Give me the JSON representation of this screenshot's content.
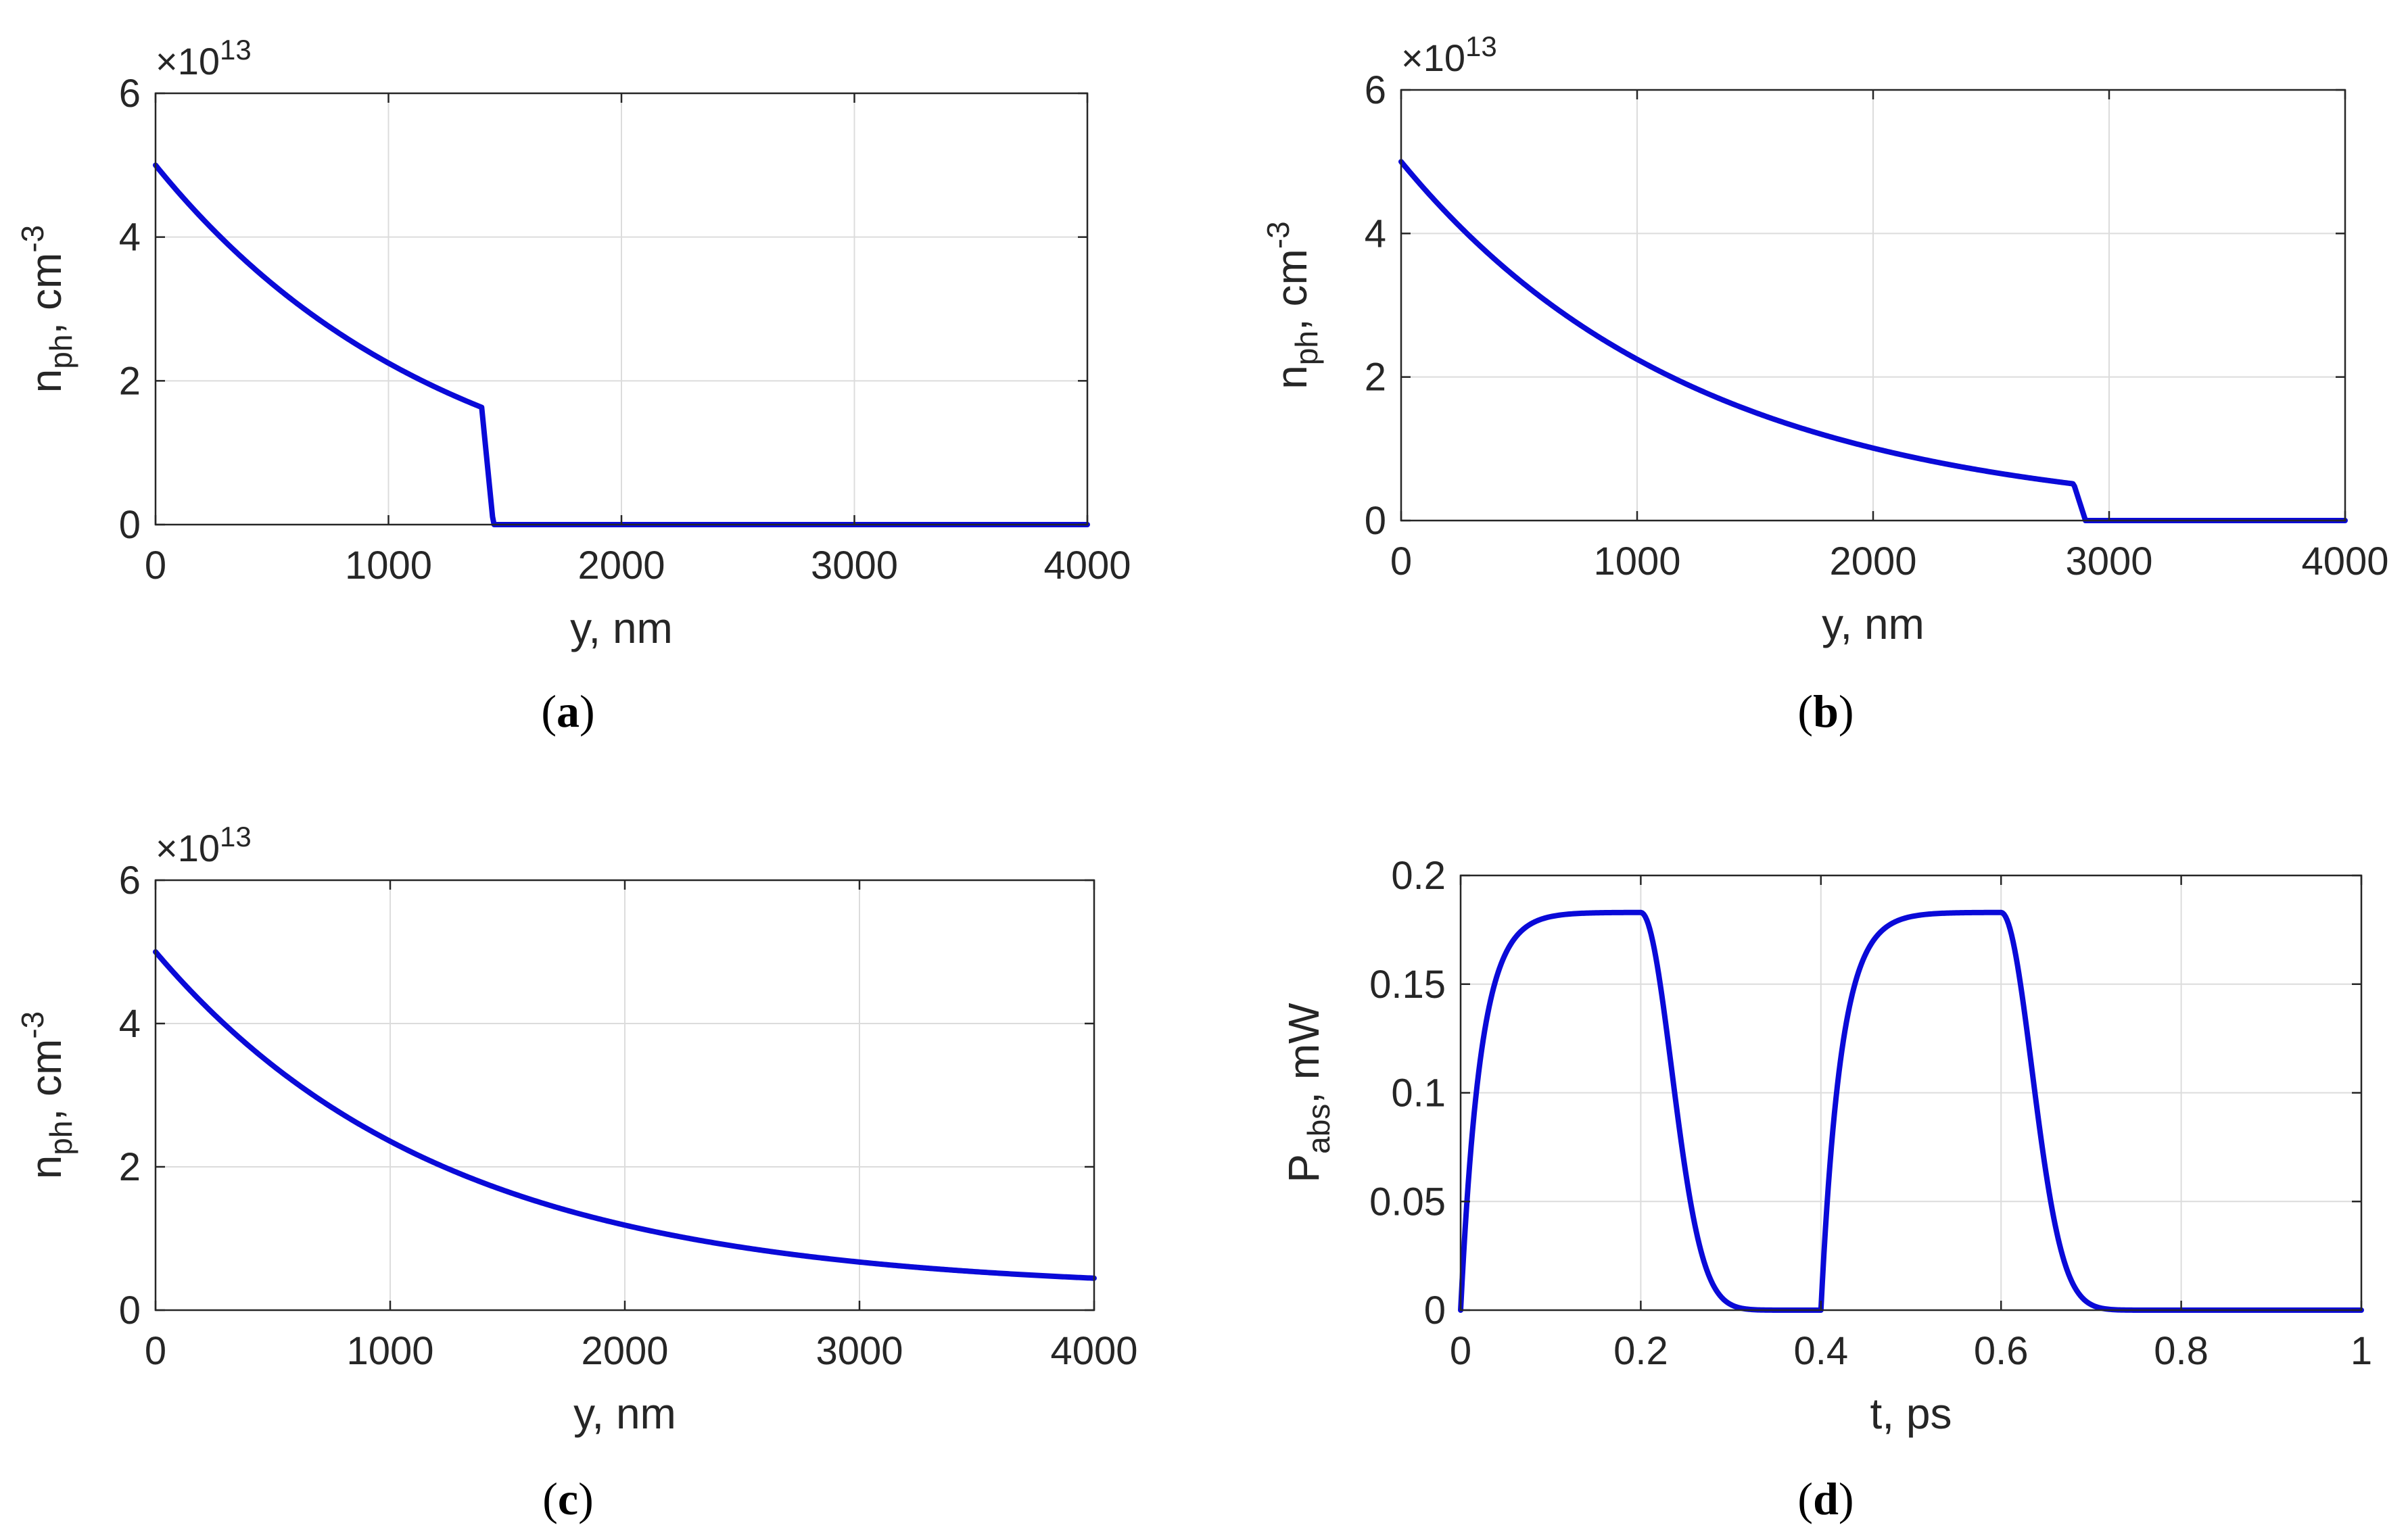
{
  "figure": {
    "colors": {
      "line": "#0a0ad8",
      "axis": "#262626",
      "grid": "#dcdcdc"
    }
  },
  "chart_data": [
    {
      "id": "a",
      "type": "line",
      "panel_label": "a",
      "xlabel": "y, nm",
      "ylabel": {
        "base": "n",
        "sub": "ph",
        "mid": ", cm",
        "sup": "-3"
      },
      "exponent_label": {
        "prefix": "×10",
        "power": "13"
      },
      "xlim": [
        0,
        4000
      ],
      "ylim": [
        0,
        6
      ],
      "xticks": [
        "0",
        "1000",
        "2000",
        "3000",
        "4000"
      ],
      "yticks": [
        "0",
        "2",
        "4",
        "6"
      ],
      "grid": true,
      "curve": {
        "model": "exp_decay_with_cutoff",
        "y0": 5.0,
        "decay_length": 1250,
        "cutoff_start": 1400,
        "cutoff_end": 1450,
        "end_x": 4000
      },
      "key_points": [
        [
          0,
          5.0
        ],
        [
          1000,
          2.2
        ],
        [
          1400,
          1.63
        ],
        [
          1450,
          0
        ],
        [
          4000,
          0
        ]
      ]
    },
    {
      "id": "b",
      "type": "line",
      "panel_label": "b",
      "xlabel": "y, nm",
      "ylabel": {
        "base": "n",
        "sub": "ph",
        "mid": ", cm",
        "sup": "-3"
      },
      "exponent_label": {
        "prefix": "×10",
        "power": "13"
      },
      "xlim": [
        0,
        4000
      ],
      "ylim": [
        0,
        6
      ],
      "xticks": [
        "0",
        "1000",
        "2000",
        "3000",
        "4000"
      ],
      "yticks": [
        "0",
        "2",
        "4",
        "6"
      ],
      "grid": true,
      "curve": {
        "model": "exp_decay_with_cutoff",
        "y0": 5.0,
        "decay_length": 1250,
        "cutoff_start": 2850,
        "cutoff_end": 2900,
        "end_x": 4000
      },
      "key_points": [
        [
          0,
          5.0
        ],
        [
          1000,
          2.2
        ],
        [
          2000,
          1.0
        ],
        [
          2850,
          0.5
        ],
        [
          2900,
          0
        ],
        [
          4000,
          0
        ]
      ]
    },
    {
      "id": "c",
      "type": "line",
      "panel_label": "c",
      "xlabel": "y, nm",
      "ylabel": {
        "base": "n",
        "sub": "ph",
        "mid": ", cm",
        "sup": "-3"
      },
      "exponent_label": {
        "prefix": "×10",
        "power": "13"
      },
      "xlim": [
        0,
        4000
      ],
      "ylim": [
        0,
        6
      ],
      "xticks": [
        "0",
        "1000",
        "2000",
        "3000",
        "4000"
      ],
      "yticks": [
        "0",
        "2",
        "4",
        "6"
      ],
      "grid": true,
      "curve": {
        "model": "exp_decay_plateau",
        "y0": 5.0,
        "decay_length": 1250,
        "end_x": 4000
      },
      "key_points": [
        [
          0,
          5.0
        ],
        [
          1000,
          2.3
        ],
        [
          2000,
          1.1
        ],
        [
          3000,
          0.6
        ],
        [
          4000,
          0.42
        ]
      ]
    },
    {
      "id": "d",
      "type": "line",
      "panel_label": "d",
      "xlabel": "t, ps",
      "ylabel": {
        "base": "P",
        "sub": "abs",
        "mid": ", mW",
        "sup": ""
      },
      "xlim": [
        0,
        1
      ],
      "ylim": [
        0,
        0.2
      ],
      "xticks": [
        "0",
        "0.2",
        "0.4",
        "0.6",
        "0.8",
        "1"
      ],
      "yticks": [
        "0",
        "0.05",
        "0.1",
        "0.15",
        "0.2"
      ],
      "grid": true,
      "curve": {
        "model": "pulse_train",
        "amplitude": 0.183,
        "pulses": [
          [
            0,
            0.2
          ],
          [
            0.4,
            0.6
          ]
        ],
        "rise_tau": 0.022,
        "fall_tau": 0.022
      },
      "key_points": [
        [
          0,
          0
        ],
        [
          0.1,
          0.181
        ],
        [
          0.2,
          0.183
        ],
        [
          0.3,
          0.002
        ],
        [
          0.4,
          0
        ],
        [
          0.5,
          0.181
        ],
        [
          0.6,
          0.183
        ],
        [
          0.7,
          0.002
        ],
        [
          1,
          0
        ]
      ]
    }
  ]
}
